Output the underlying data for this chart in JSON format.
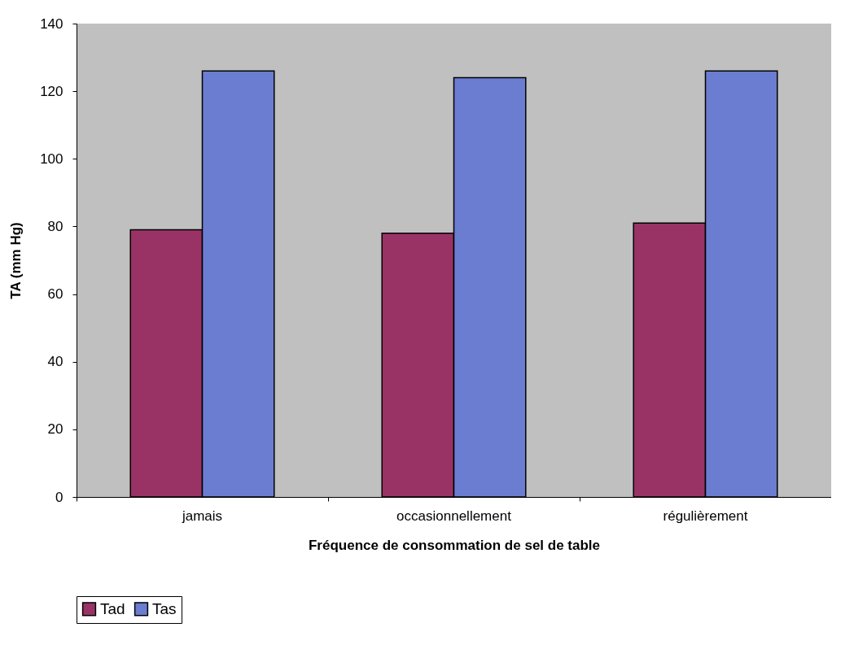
{
  "chart_data": {
    "type": "bar",
    "xlabel": "Fréquence de consommation de sel de table",
    "ylabel": "TA (mm Hg)",
    "categories": [
      "jamais",
      "occasionnellement",
      "régulièrement"
    ],
    "series": [
      {
        "name": "Tad",
        "color": "#993366",
        "values": [
          79,
          78,
          81
        ]
      },
      {
        "name": "Tas",
        "color": "#6a7dd0",
        "values": [
          126,
          124,
          126
        ]
      }
    ],
    "ylim": [
      0,
      140
    ],
    "yticks": [
      0,
      20,
      40,
      60,
      80,
      100,
      120,
      140
    ],
    "grid": false,
    "legend": "bottom"
  }
}
